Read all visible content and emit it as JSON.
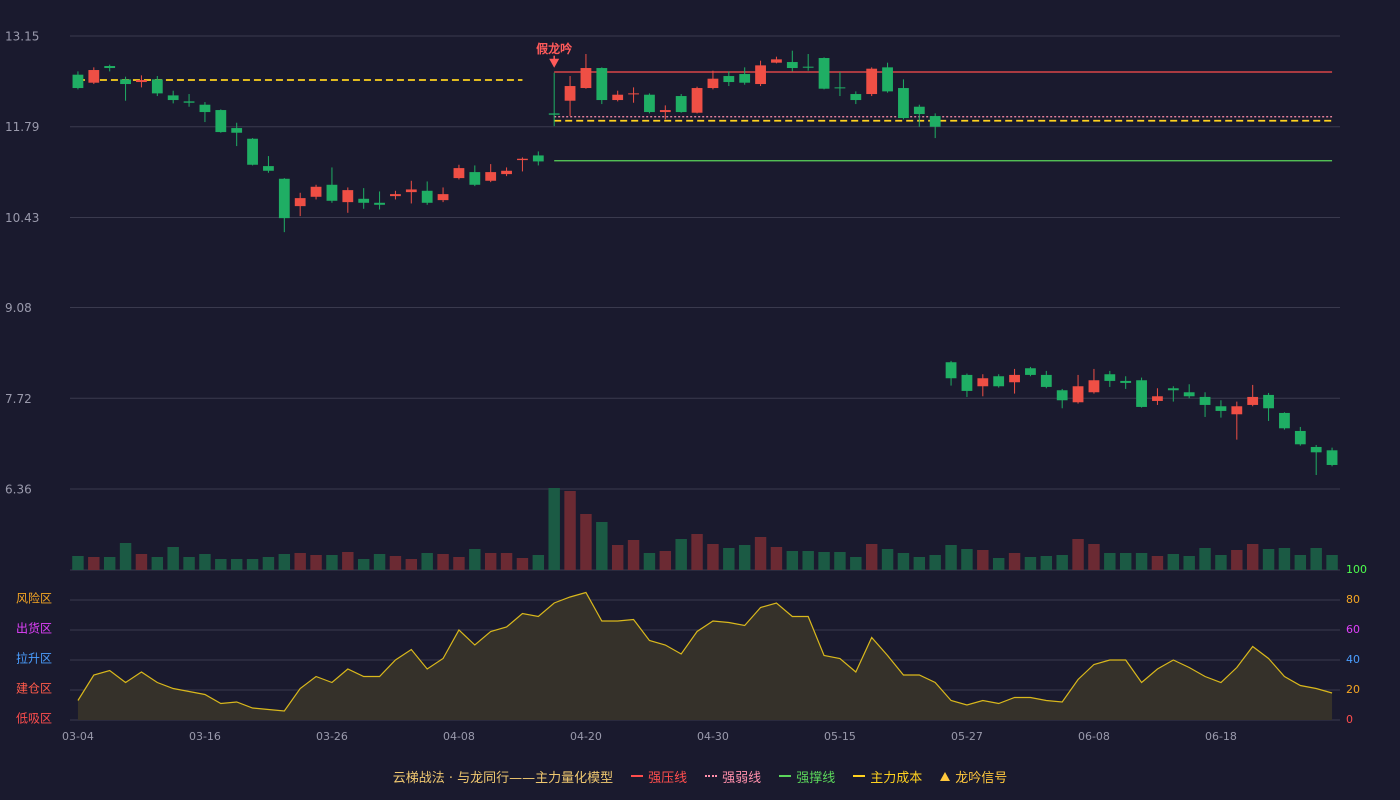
{
  "chart_data": {
    "type": "candlestick",
    "categories": [
      "03-04",
      null,
      null,
      null,
      null,
      null,
      null,
      null,
      "03-16",
      null,
      null,
      null,
      null,
      null,
      null,
      null,
      "03-26",
      null,
      null,
      null,
      null,
      null,
      null,
      null,
      "04-08",
      null,
      null,
      null,
      null,
      null,
      null,
      null,
      "04-20",
      null,
      null,
      null,
      null,
      null,
      null,
      null,
      "04-30",
      null,
      null,
      null,
      null,
      null,
      null,
      null,
      "05-15",
      null,
      null,
      null,
      null,
      null,
      null,
      null,
      "05-27",
      null,
      null,
      null,
      null,
      null,
      null,
      null,
      "06-08",
      null,
      null,
      null,
      null,
      null,
      null,
      null,
      "06-18",
      null,
      null,
      null,
      null,
      null,
      null,
      null
    ],
    "candles": [
      [
        12.57,
        12.62,
        12.35,
        12.37
      ],
      [
        12.45,
        12.68,
        12.43,
        12.64
      ],
      [
        12.7,
        12.72,
        12.62,
        12.67
      ],
      [
        12.5,
        12.54,
        12.18,
        12.43
      ],
      [
        12.46,
        12.56,
        12.38,
        12.49
      ],
      [
        12.5,
        12.55,
        12.25,
        12.29
      ],
      [
        12.26,
        12.33,
        12.14,
        12.19
      ],
      [
        12.17,
        12.28,
        12.09,
        12.15
      ],
      [
        12.12,
        12.16,
        11.86,
        12.01
      ],
      [
        12.04,
        12.05,
        11.7,
        11.71
      ],
      [
        11.77,
        11.85,
        11.5,
        11.7
      ],
      [
        11.61,
        11.62,
        11.21,
        11.22
      ],
      [
        11.2,
        11.35,
        11.1,
        11.13
      ],
      [
        11.01,
        11.02,
        10.21,
        10.42
      ],
      [
        10.6,
        10.8,
        10.45,
        10.72
      ],
      [
        10.74,
        10.92,
        10.7,
        10.89
      ],
      [
        10.92,
        11.18,
        10.65,
        10.68
      ],
      [
        10.66,
        10.88,
        10.5,
        10.84
      ],
      [
        10.71,
        10.87,
        10.56,
        10.65
      ],
      [
        10.65,
        10.82,
        10.55,
        10.62
      ],
      [
        10.75,
        10.83,
        10.7,
        10.78
      ],
      [
        10.81,
        10.98,
        10.64,
        10.85
      ],
      [
        10.83,
        10.97,
        10.62,
        10.65
      ],
      [
        10.69,
        10.88,
        10.66,
        10.78
      ],
      [
        11.02,
        11.22,
        11.0,
        11.17
      ],
      [
        11.11,
        11.21,
        10.9,
        10.92
      ],
      [
        10.98,
        11.23,
        10.96,
        11.11
      ],
      [
        11.08,
        11.18,
        11.05,
        11.13
      ],
      [
        11.29,
        11.33,
        11.12,
        11.31
      ],
      [
        11.36,
        11.42,
        11.21,
        11.27
      ],
      [
        11.99,
        12.6,
        11.8,
        11.97
      ],
      [
        12.18,
        12.55,
        11.95,
        12.4
      ],
      [
        12.37,
        12.88,
        12.36,
        12.67
      ],
      [
        12.67,
        12.68,
        12.13,
        12.19
      ],
      [
        12.19,
        12.33,
        12.17,
        12.27
      ],
      [
        12.28,
        12.38,
        12.15,
        12.29
      ],
      [
        12.27,
        12.29,
        11.99,
        12.01
      ],
      [
        12.01,
        12.11,
        11.9,
        12.04
      ],
      [
        12.25,
        12.28,
        12.0,
        12.01
      ],
      [
        12.0,
        12.39,
        11.99,
        12.37
      ],
      [
        12.37,
        12.63,
        12.35,
        12.51
      ],
      [
        12.55,
        12.62,
        12.4,
        12.46
      ],
      [
        12.58,
        12.68,
        12.42,
        12.45
      ],
      [
        12.43,
        12.78,
        12.4,
        12.71
      ],
      [
        12.75,
        12.84,
        12.74,
        12.8
      ],
      [
        12.76,
        12.93,
        12.62,
        12.67
      ],
      [
        12.69,
        12.88,
        12.63,
        12.68
      ],
      [
        12.82,
        12.83,
        12.35,
        12.36
      ],
      [
        12.38,
        12.61,
        12.25,
        12.37
      ],
      [
        12.28,
        12.32,
        12.13,
        12.19
      ],
      [
        12.28,
        12.68,
        12.25,
        12.66
      ],
      [
        12.68,
        12.75,
        12.3,
        12.32
      ],
      [
        12.37,
        12.5,
        11.9,
        11.92
      ],
      [
        12.09,
        12.12,
        11.79,
        11.98
      ],
      [
        11.95,
        11.99,
        11.62,
        11.79
      ],
      [
        8.26,
        8.28,
        7.91,
        8.02
      ],
      [
        8.07,
        8.09,
        7.74,
        7.83
      ],
      [
        7.9,
        8.08,
        7.75,
        8.02
      ],
      [
        8.05,
        8.08,
        7.88,
        7.9
      ],
      [
        7.96,
        8.16,
        7.79,
        8.07
      ],
      [
        8.17,
        8.19,
        8.05,
        8.07
      ],
      [
        8.07,
        8.13,
        7.87,
        7.89
      ],
      [
        7.84,
        7.86,
        7.57,
        7.69
      ],
      [
        7.66,
        8.07,
        7.64,
        7.9
      ],
      [
        7.81,
        8.16,
        7.79,
        7.99
      ],
      [
        8.08,
        8.13,
        7.89,
        7.98
      ],
      [
        7.98,
        8.05,
        7.86,
        7.95
      ],
      [
        7.99,
        8.03,
        7.58,
        7.59
      ],
      [
        7.68,
        7.87,
        7.62,
        7.75
      ],
      [
        7.87,
        7.9,
        7.67,
        7.84
      ],
      [
        7.81,
        7.93,
        7.72,
        7.75
      ],
      [
        7.74,
        7.81,
        7.44,
        7.62
      ],
      [
        7.6,
        7.69,
        7.43,
        7.53
      ],
      [
        7.48,
        7.67,
        7.1,
        7.6
      ],
      [
        7.62,
        7.92,
        7.6,
        7.74
      ],
      [
        7.77,
        7.8,
        7.38,
        7.57
      ],
      [
        7.5,
        7.51,
        7.25,
        7.27
      ],
      [
        7.23,
        7.29,
        7.01,
        7.03
      ],
      [
        6.99,
        7.02,
        6.57,
        6.91
      ],
      [
        6.94,
        6.98,
        6.7,
        6.72
      ]
    ],
    "up_color": "#ef4f45",
    "down_color": "#1fae64",
    "ylim": [
      6.36,
      13.15
    ],
    "yticks": [
      13.15,
      11.79,
      10.43,
      9.08,
      7.72,
      6.36
    ],
    "grid": true,
    "series": [
      {
        "name": "强压线",
        "color": "#ff4d4d",
        "style": "solid",
        "values": [
          null,
          null,
          null,
          null,
          null,
          null,
          null,
          null,
          null,
          null,
          null,
          null,
          null,
          null,
          null,
          null,
          null,
          null,
          null,
          null,
          null,
          null,
          null,
          null,
          null,
          null,
          null,
          null,
          null,
          null,
          12.61,
          12.61,
          12.61,
          12.61,
          12.61,
          12.61,
          12.61,
          12.61,
          12.61,
          12.61,
          12.61,
          12.61,
          12.61,
          12.61,
          12.61,
          12.61,
          12.61,
          12.61,
          12.61,
          12.61,
          12.61,
          12.61,
          12.61,
          12.61,
          12.61,
          12.61,
          12.61,
          12.61,
          12.61,
          12.61,
          12.61,
          12.61,
          12.61,
          12.61,
          12.61,
          12.61,
          12.61,
          12.61,
          12.61,
          12.61,
          12.61,
          12.61,
          12.61,
          12.61,
          12.61,
          12.61,
          12.61,
          12.61,
          12.61,
          12.61
        ]
      },
      {
        "name": "强弱线",
        "color": "#ff8fab",
        "style": "dotted",
        "values": [
          null,
          null,
          null,
          null,
          null,
          null,
          null,
          null,
          null,
          null,
          null,
          null,
          null,
          null,
          null,
          null,
          null,
          null,
          null,
          null,
          null,
          null,
          null,
          null,
          null,
          null,
          null,
          null,
          null,
          null,
          11.94,
          11.94,
          11.94,
          11.94,
          11.94,
          11.94,
          11.94,
          11.94,
          11.94,
          11.94,
          11.94,
          11.94,
          11.94,
          11.94,
          11.94,
          11.94,
          11.94,
          11.94,
          11.94,
          11.94,
          11.94,
          11.94,
          11.94,
          11.94,
          11.94,
          11.94,
          11.94,
          11.94,
          11.94,
          11.94,
          11.94,
          11.94,
          11.94,
          11.94,
          11.94,
          11.94,
          11.94,
          11.94,
          11.94,
          11.94,
          11.94,
          11.94,
          11.94,
          11.94,
          11.94,
          11.94,
          11.94,
          11.94,
          11.94,
          11.94
        ]
      },
      {
        "name": "强撑线",
        "color": "#5bd65b",
        "style": "solid",
        "values": [
          null,
          null,
          null,
          null,
          null,
          null,
          null,
          null,
          null,
          null,
          null,
          null,
          null,
          null,
          null,
          null,
          null,
          null,
          null,
          null,
          null,
          null,
          null,
          null,
          null,
          null,
          null,
          null,
          null,
          null,
          11.28,
          11.28,
          11.28,
          11.28,
          11.28,
          11.28,
          11.28,
          11.28,
          11.28,
          11.28,
          11.28,
          11.28,
          11.28,
          11.28,
          11.28,
          11.28,
          11.28,
          11.28,
          11.28,
          11.28,
          11.28,
          11.28,
          11.28,
          11.28,
          11.28,
          11.28,
          11.28,
          11.28,
          11.28,
          11.28,
          11.28,
          11.28,
          11.28,
          11.28,
          11.28,
          11.28,
          11.28,
          11.28,
          11.28,
          11.28,
          11.28,
          11.28,
          11.28,
          11.28,
          11.28,
          11.28,
          11.28,
          11.28,
          11.28,
          11.28
        ]
      },
      {
        "name": "主力成本",
        "color": "#ffd21f",
        "style": "dashed",
        "values": [
          12.49,
          12.49,
          12.49,
          12.49,
          12.49,
          12.49,
          12.49,
          12.49,
          12.49,
          12.49,
          12.49,
          12.49,
          12.49,
          12.49,
          12.49,
          12.49,
          12.49,
          12.49,
          12.49,
          12.49,
          12.49,
          12.49,
          12.49,
          12.49,
          12.49,
          12.49,
          12.49,
          12.49,
          12.49,
          null,
          11.88,
          11.88,
          11.88,
          11.88,
          11.88,
          11.88,
          11.88,
          11.88,
          11.88,
          11.88,
          11.88,
          11.88,
          11.88,
          11.88,
          11.88,
          11.88,
          11.88,
          11.88,
          11.88,
          11.88,
          11.88,
          11.88,
          11.88,
          11.88,
          11.88,
          11.88,
          11.88,
          11.88,
          11.88,
          11.88,
          11.88,
          11.88,
          11.88,
          11.88,
          11.88,
          11.88,
          11.88,
          11.88,
          11.88,
          11.88,
          11.88,
          11.88,
          11.88,
          11.88,
          11.88,
          11.88,
          11.88,
          11.88,
          11.88,
          11.88
        ]
      }
    ],
    "annotations": [
      {
        "text": "假龙吟",
        "x": 30,
        "color": "#ff5a5a"
      }
    ],
    "signal_legend": {
      "name": "龙吟信号",
      "color": "#ffc83d"
    },
    "legend_title": "云梯战法 · 与龙同行——主力量化模型",
    "legend_title_color": "#f0c870",
    "volume": [
      14,
      13,
      13,
      27,
      16,
      13,
      23,
      13,
      16,
      11,
      11,
      11,
      13,
      16,
      17,
      15,
      15,
      18,
      11,
      16,
      14,
      11,
      17,
      16,
      13,
      21,
      17,
      17,
      12,
      15,
      82,
      79,
      56,
      48,
      25,
      30,
      17,
      19,
      31,
      36,
      26,
      22,
      25,
      33,
      23,
      19,
      19,
      18,
      18,
      13,
      26,
      21,
      17,
      13,
      15,
      25,
      21,
      20,
      12,
      17,
      13,
      14,
      15,
      31,
      26,
      17,
      17,
      17,
      14,
      16,
      14,
      22,
      15,
      20,
      26,
      21,
      22,
      15,
      22,
      15
    ],
    "volume_ylim": [
      0,
      82
    ],
    "volume_up_color": "#6b2a33",
    "volume_down_color": "#1b5a44",
    "indicator": {
      "values": [
        13,
        30,
        33,
        25,
        32,
        25,
        21,
        19,
        17,
        11,
        12,
        8,
        7,
        6,
        21,
        29,
        25,
        34,
        29,
        29,
        40,
        47,
        34,
        41,
        60,
        50,
        59,
        62,
        71,
        69,
        78,
        82,
        85,
        66,
        66,
        67,
        53,
        50,
        44,
        59,
        66,
        65,
        63,
        75,
        78,
        69,
        69,
        43,
        41,
        32,
        55,
        43,
        30,
        30,
        25,
        13,
        10,
        13,
        11,
        15,
        15,
        13,
        12,
        27,
        37,
        40,
        40,
        25,
        34,
        40,
        35,
        29,
        25,
        35,
        49,
        41,
        29,
        23,
        21,
        18
      ],
      "color": "#d9b81c",
      "fill": "#35312a",
      "ylim": [
        0,
        100
      ],
      "yticks": [
        0,
        20,
        40,
        60,
        80,
        100
      ],
      "ytick_colors": [
        "#ff4d4d",
        "#f5a623",
        "#4a9eff",
        "#e040fb",
        "#f5a623",
        "#4cff4c"
      ],
      "zones": [
        {
          "label": "风险区",
          "value": 80,
          "color": "#f5a623"
        },
        {
          "label": "出货区",
          "value": 60,
          "color": "#e040fb"
        },
        {
          "label": "拉升区",
          "value": 40,
          "color": "#4a9eff"
        },
        {
          "label": "建仓区",
          "value": 20,
          "color": "#ff5a4a"
        },
        {
          "label": "低吸区",
          "value": 0,
          "color": "#ff4d4d"
        }
      ]
    }
  }
}
